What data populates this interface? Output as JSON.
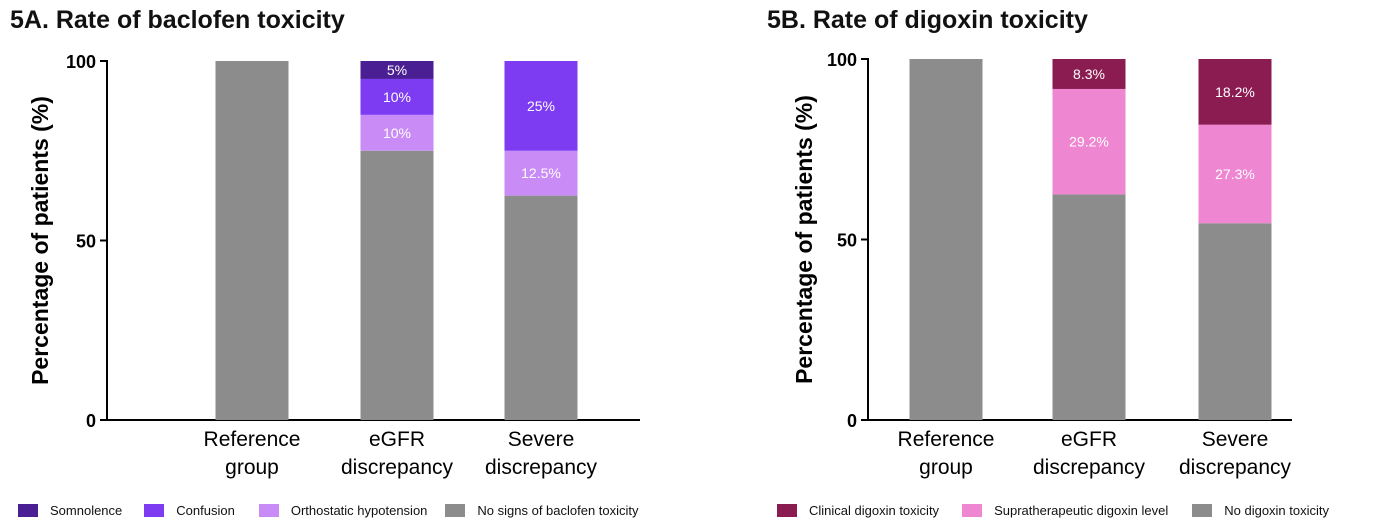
{
  "colors": {
    "somnolence": "#4b1f94",
    "confusion": "#7d3bf2",
    "orthostatic": "#c98bf5",
    "no_baclofen": "#8c8c8c",
    "clinical_digoxin": "#8a1c52",
    "supratherapeutic": "#ee86d2",
    "no_digoxin": "#8c8c8c"
  },
  "panels": {
    "a": {
      "title": "5A. Rate of baclofen toxicity"
    },
    "b": {
      "title": "5B. Rate of digoxin toxicity"
    }
  },
  "chart_data": [
    {
      "type": "bar",
      "stacked": true,
      "title": "5A. Rate of baclofen toxicity",
      "xlabel": "",
      "ylabel": "Percentage of patients (%)",
      "ylim": [
        0,
        100
      ],
      "yticks": [
        "0",
        "50",
        "100"
      ],
      "categories": [
        "Reference group",
        "eGFR discrepancy",
        "Severe discrepancy"
      ],
      "category_lines": [
        [
          "Reference",
          "group"
        ],
        [
          "eGFR",
          "discrepancy"
        ],
        [
          "Severe",
          "discrepancy"
        ]
      ],
      "legend_position": "bottom",
      "series": [
        {
          "name": "No signs of baclofen toxicity",
          "color": "#8c8c8c",
          "values": [
            100,
            75,
            62.5
          ],
          "labels": [
            "",
            "",
            ""
          ]
        },
        {
          "name": "Orthostatic hypotension",
          "color": "#c98bf5",
          "values": [
            0,
            10,
            12.5
          ],
          "labels": [
            "",
            "10%",
            "12.5%"
          ]
        },
        {
          "name": "Confusion",
          "color": "#7d3bf2",
          "values": [
            0,
            10,
            25
          ],
          "labels": [
            "",
            "10%",
            "25%"
          ]
        },
        {
          "name": "Somnolence",
          "color": "#4b1f94",
          "values": [
            0,
            5,
            0
          ],
          "labels": [
            "",
            "5%",
            ""
          ]
        }
      ],
      "legend": [
        "Somnolence",
        "Confusion",
        "Orthostatic hypotension",
        "No signs of baclofen toxicity"
      ]
    },
    {
      "type": "bar",
      "stacked": true,
      "title": "5B. Rate of digoxin toxicity",
      "xlabel": "",
      "ylabel": "Percentage of patients (%)",
      "ylim": [
        0,
        100
      ],
      "yticks": [
        "0",
        "50",
        "100"
      ],
      "categories": [
        "Reference group",
        "eGFR discrepancy",
        "Severe discrepancy"
      ],
      "category_lines": [
        [
          "Reference",
          "group"
        ],
        [
          "eGFR",
          "discrepancy"
        ],
        [
          "Severe",
          "discrepancy"
        ]
      ],
      "legend_position": "bottom",
      "series": [
        {
          "name": "No digoxin toxicity",
          "color": "#8c8c8c",
          "values": [
            100,
            62.5,
            54.5
          ],
          "labels": [
            "",
            "",
            ""
          ]
        },
        {
          "name": "Supratherapeutic digoxin level",
          "color": "#ee86d2",
          "values": [
            0,
            29.2,
            27.3
          ],
          "labels": [
            "",
            "29.2%",
            "27.3%"
          ]
        },
        {
          "name": "Clinical digoxin toxicity",
          "color": "#8a1c52",
          "values": [
            0,
            8.3,
            18.2
          ],
          "labels": [
            "",
            "8.3%",
            "18.2%"
          ]
        }
      ],
      "legend": [
        "Clinical digoxin toxicity",
        "Supratherapeutic digoxin level",
        "No digoxin toxicity"
      ]
    }
  ]
}
